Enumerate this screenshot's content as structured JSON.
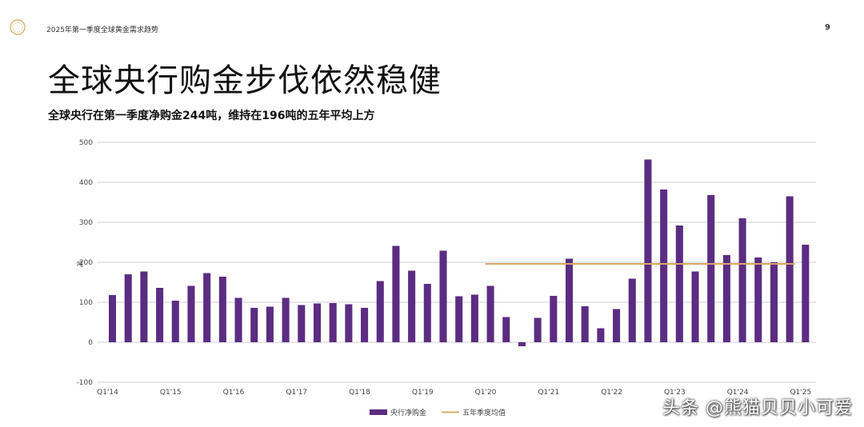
{
  "header": {
    "doc_title": "2025年第一季度全球黄金需求趋势",
    "page_number": "9"
  },
  "title": "全球央行购金步伐依然稳健",
  "subtitle": "全球央行在第一季度净购金244吨，维持在196吨的五年平均上方",
  "watermark": {
    "text": "头条 @熊猫贝贝小可爱"
  },
  "colors": {
    "bar": "#5b2d82",
    "avg_line": "#d9a86a",
    "grid": "#cfcfd8",
    "axis_text": "#444444"
  },
  "chart_data": {
    "type": "bar",
    "ylabel": "吨",
    "ylim": [
      -100,
      500
    ],
    "yticks": [
      "-100",
      "0",
      "100",
      "200",
      "300",
      "400",
      "500"
    ],
    "ytick_values": [
      -100,
      0,
      100,
      200,
      300,
      400,
      500
    ],
    "grid": true,
    "legend_position": "bottom-center",
    "xtick_labels": [
      {
        "index": 0,
        "label": "Q1'14"
      },
      {
        "index": 4,
        "label": "Q1'15"
      },
      {
        "index": 8,
        "label": "Q1'16"
      },
      {
        "index": 12,
        "label": "Q1'17"
      },
      {
        "index": 16,
        "label": "Q1'18"
      },
      {
        "index": 20,
        "label": "Q1'19"
      },
      {
        "index": 24,
        "label": "Q1'20"
      },
      {
        "index": 28,
        "label": "Q1'21"
      },
      {
        "index": 32,
        "label": "Q1'22"
      },
      {
        "index": 36,
        "label": "Q1'23"
      },
      {
        "index": 40,
        "label": "Q1'24"
      },
      {
        "index": 44,
        "label": "Q1'25"
      }
    ],
    "series": [
      {
        "name": "央行净购金",
        "type": "bar",
        "values": [
          118,
          170,
          177,
          136,
          104,
          141,
          173,
          164,
          111,
          86,
          89,
          111,
          93,
          97,
          98,
          95,
          86,
          153,
          241,
          179,
          146,
          229,
          115,
          119,
          141,
          63,
          -10,
          61,
          116,
          209,
          90,
          35,
          83,
          159,
          457,
          382,
          292,
          177,
          368,
          218,
          310,
          212,
          200,
          365,
          244
        ]
      },
      {
        "name": "五年季度均值",
        "type": "line",
        "value": 196,
        "start_index": 24,
        "end_index": 43
      }
    ]
  }
}
